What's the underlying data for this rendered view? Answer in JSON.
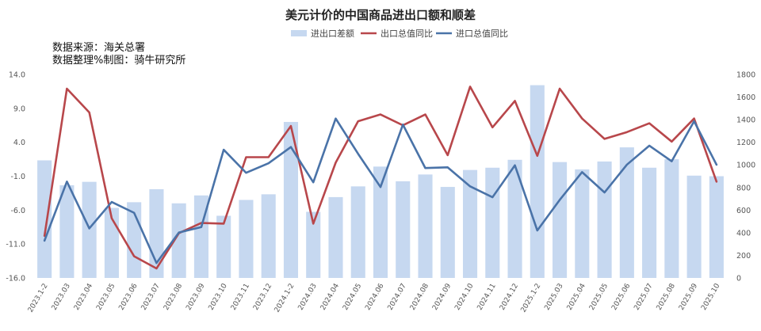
{
  "chart_data": {
    "type": "bar",
    "title": "美元计价的中国商品进出口额和顺差",
    "annotations": [
      "数据来源：海关总署",
      "数据整理%制图：骑牛研究所"
    ],
    "legend": {
      "placement": "top-center",
      "entries": [
        "进出口差额",
        "出口总值同比",
        "进口总值同比"
      ]
    },
    "categories": [
      "2023.1-2",
      "2023.03",
      "2023.04",
      "2023.05",
      "2023.06",
      "2023.07",
      "2023.08",
      "2023.09",
      "2023.10",
      "2023.11",
      "2023.12",
      "2024.1-2",
      "2024.03",
      "2024.04",
      "2024.05",
      "2024.06",
      "2024.07",
      "2024.08",
      "2024.09",
      "2024.10",
      "2024.11",
      "2024.12",
      "2025.1-2",
      "2025.03",
      "2025.04",
      "2025.05",
      "2025.06",
      "2025.07",
      "2025.08",
      "2025.09",
      "2025.10"
    ],
    "left_axis": {
      "ylim": [
        -16,
        14
      ],
      "ticks": [
        "14.0",
        "9.0",
        "4.0",
        "-1.0",
        "-6.0",
        "-11.0",
        "-16.0"
      ]
    },
    "right_axis": {
      "ylim": [
        0,
        1800
      ],
      "ticks": [
        "1800",
        "1600",
        "1400",
        "1200",
        "1000",
        "800",
        "600",
        "400",
        "200",
        "0"
      ]
    },
    "grid": false,
    "series": [
      {
        "name": "进出口差额",
        "axis": "right",
        "kind": "bar",
        "color": "#c6d8f0",
        "values": [
          1040,
          820,
          850,
          620,
          670,
          785,
          660,
          730,
          550,
          690,
          740,
          1380,
          585,
          715,
          810,
          985,
          855,
          915,
          805,
          955,
          975,
          1045,
          1705,
          1025,
          960,
          1030,
          1155,
          975,
          1050,
          905,
          900
        ]
      },
      {
        "name": "出口总值同比",
        "axis": "left",
        "kind": "line",
        "color": "#b8474b",
        "values": [
          -9.8,
          11.9,
          8.4,
          -7.2,
          -12.8,
          -14.6,
          -9.4,
          -7.9,
          -8.0,
          1.8,
          1.8,
          6.4,
          -8.0,
          1.0,
          7.1,
          8.1,
          6.5,
          8.1,
          2.1,
          12.2,
          6.2,
          10.1,
          2.0,
          11.9,
          7.5,
          4.5,
          5.5,
          6.8,
          4.1,
          7.5,
          -1.8
        ]
      },
      {
        "name": "进口总值同比",
        "axis": "left",
        "kind": "line",
        "color": "#4a73a8",
        "values": [
          -10.5,
          -1.8,
          -8.7,
          -4.8,
          -6.4,
          -13.8,
          -9.3,
          -8.5,
          2.9,
          -0.5,
          0.9,
          3.3,
          -1.9,
          7.5,
          2.3,
          -2.6,
          6.6,
          0.2,
          0.3,
          -2.5,
          -4.1,
          0.6,
          -9.0,
          -4.5,
          -0.4,
          -3.4,
          0.7,
          3.5,
          1.2,
          7.1,
          0.7
        ]
      }
    ]
  }
}
